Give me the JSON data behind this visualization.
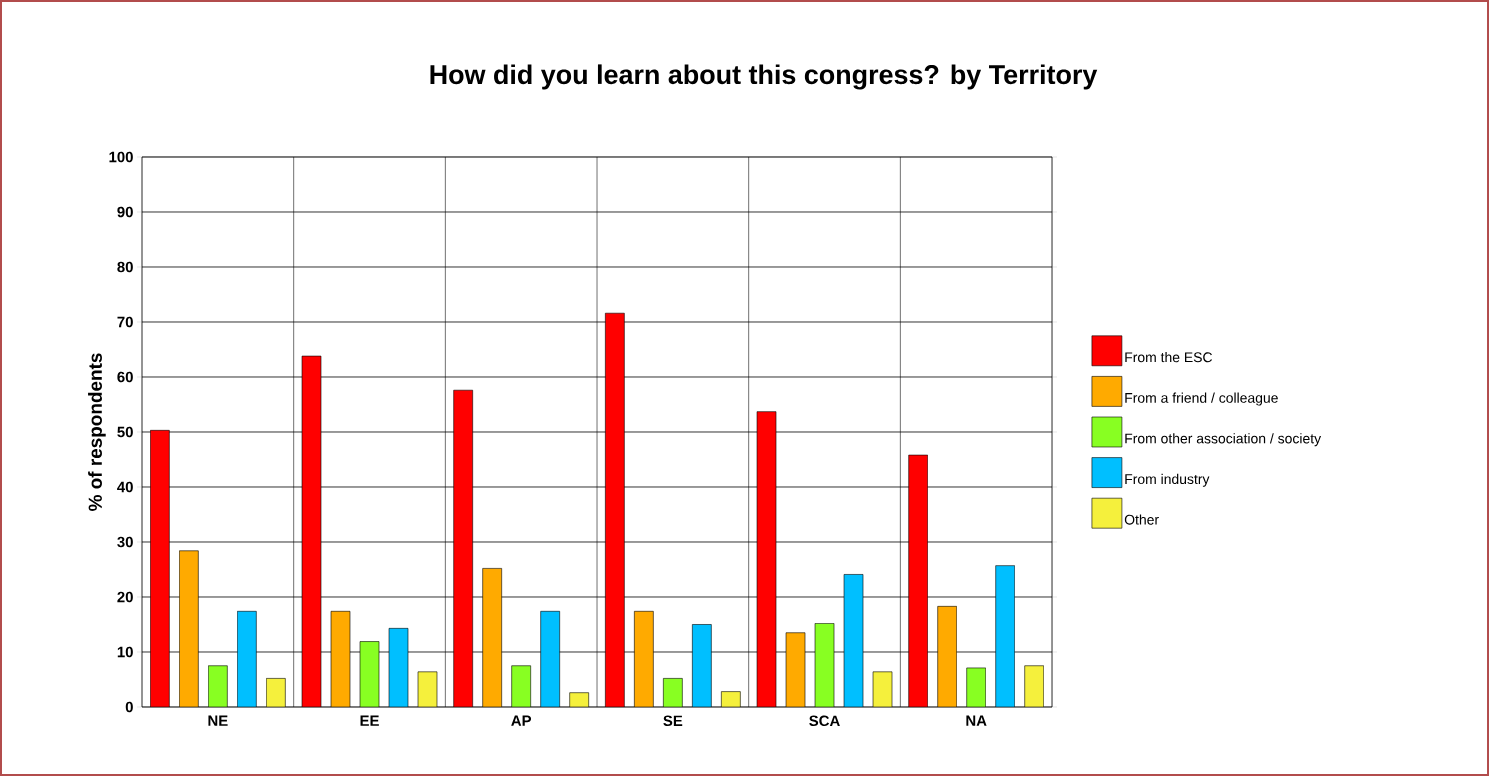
{
  "chart_data": {
    "type": "bar",
    "title": "How did you learn about this congress?  by Territory",
    "ylabel": "% of respondents",
    "categories": [
      "NE",
      "EE",
      "AP",
      "SE",
      "SCA",
      "NA"
    ],
    "series": [
      {
        "name": "From the ESC",
        "color": "#ff0000",
        "values": [
          50.3,
          63.8,
          57.6,
          71.6,
          53.7,
          45.8
        ]
      },
      {
        "name": "From a friend / colleague",
        "color": "#ffaa00",
        "values": [
          28.4,
          17.4,
          25.2,
          17.4,
          13.5,
          18.3
        ]
      },
      {
        "name": "From other association / society",
        "color": "#88ff22",
        "values": [
          7.5,
          11.9,
          7.5,
          5.2,
          15.2,
          7.1
        ]
      },
      {
        "name": "From industry",
        "color": "#00bfff",
        "values": [
          17.4,
          14.3,
          17.4,
          15.0,
          24.1,
          25.7
        ]
      },
      {
        "name": "Other",
        "color": "#f5f03c",
        "values": [
          5.2,
          6.4,
          2.6,
          2.8,
          6.4,
          7.5
        ]
      }
    ],
    "ylim": [
      0,
      100
    ],
    "yticks": [
      0,
      10,
      20,
      30,
      40,
      50,
      60,
      70,
      80,
      90,
      100
    ],
    "grid": true,
    "legend": "right"
  }
}
